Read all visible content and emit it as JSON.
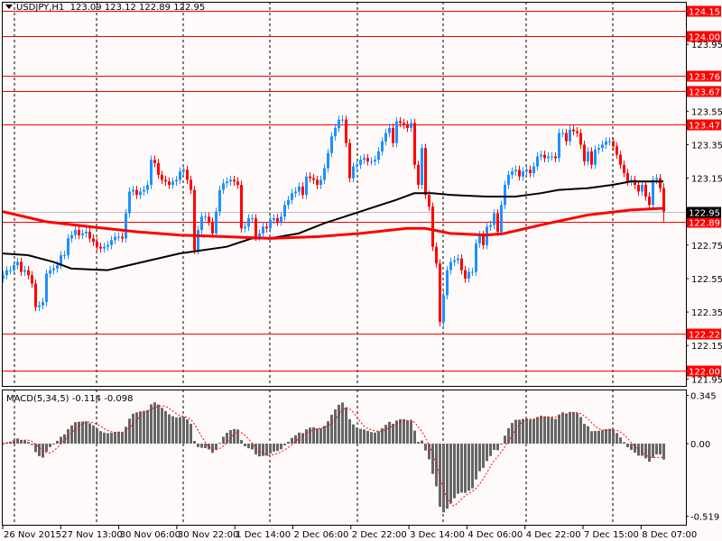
{
  "header": {
    "symbol": "USDJPY,H1",
    "open": "123.09",
    "high": "123.12",
    "low": "122.89",
    "close": "122.95"
  },
  "macd_header": {
    "label": "MACD(5,34,5)",
    "main": "-0.114",
    "signal": "-0.098"
  },
  "colors": {
    "background": "#fffafa",
    "bull": "#1e90ff",
    "bear": "#ff0000",
    "level_line": "#ff0000",
    "ma_slow": "#ff0000",
    "ma_fast": "#000000",
    "histogram": "#666666",
    "signal": "#ff0000",
    "bid_line": "#c0c0c0"
  },
  "chart_data": [
    {
      "type": "candlestick",
      "title": "USDJPY,H1",
      "ylim": [
        121.93,
        124.2
      ],
      "y_ticks": [
        "123.95",
        "123.55",
        "123.35",
        "123.15",
        "122.75",
        "122.55",
        "122.35",
        "122.15",
        "121.95"
      ],
      "x_tick_labels": [
        "26 Nov 2015",
        "27 Nov 13:00",
        "30 Nov 06:00",
        "30 Nov 22:00",
        "1 Dec 14:00",
        "2 Dec 06:00",
        "2 Dec 22:00",
        "3 Dec 14:00",
        "4 Dec 06:00",
        "4 Dec 22:00",
        "7 Dec 15:00",
        "8 Dec 07:00"
      ],
      "levels": [
        "124.15",
        "124.00",
        "123.76",
        "123.67",
        "123.47",
        "122.22",
        "122.00"
      ],
      "current_price": "122.95",
      "ask_line": "122.89",
      "last_bar": {
        "open": 123.09,
        "high": 123.12,
        "low": 122.89,
        "close": 122.95
      },
      "closes": [
        122.57,
        122.6,
        122.6,
        122.63,
        122.65,
        122.59,
        122.6,
        122.57,
        122.52,
        122.38,
        122.39,
        122.41,
        122.58,
        122.6,
        122.61,
        122.63,
        122.69,
        122.69,
        122.79,
        122.81,
        122.84,
        122.81,
        122.82,
        122.83,
        122.79,
        122.77,
        122.74,
        122.73,
        122.74,
        122.75,
        122.78,
        122.8,
        122.8,
        122.79,
        122.94,
        123.07,
        123.08,
        123.05,
        123.07,
        123.08,
        123.11,
        123.26,
        123.24,
        123.17,
        123.14,
        123.13,
        123.11,
        123.13,
        123.14,
        123.19,
        123.2,
        123.14,
        123.08,
        122.72,
        122.84,
        122.92,
        122.92,
        122.89,
        122.82,
        122.95,
        123.08,
        123.12,
        123.13,
        123.14,
        123.13,
        123.11,
        122.85,
        122.86,
        122.91,
        122.91,
        122.8,
        122.82,
        122.86,
        122.85,
        122.9,
        122.91,
        122.89,
        122.92,
        122.99,
        123.02,
        123.06,
        123.07,
        123.1,
        123.05,
        123.16,
        123.15,
        123.14,
        123.11,
        123.14,
        123.21,
        123.3,
        123.4,
        123.45,
        123.5,
        123.5,
        123.36,
        123.15,
        123.22,
        123.23,
        123.26,
        123.27,
        123.25,
        123.25,
        123.26,
        123.31,
        123.37,
        123.42,
        123.45,
        123.36,
        123.49,
        123.48,
        123.47,
        123.45,
        123.48,
        123.23,
        123.11,
        123.33,
        123.05,
        122.98,
        122.74,
        122.64,
        122.29,
        122.45,
        122.6,
        122.65,
        122.66,
        122.67,
        122.6,
        122.55,
        122.59,
        122.59,
        122.76,
        122.81,
        122.75,
        122.86,
        122.87,
        122.94,
        122.83,
        122.99,
        123.11,
        123.17,
        123.19,
        123.2,
        123.16,
        123.19,
        123.2,
        123.18,
        123.22,
        123.28,
        123.29,
        123.27,
        123.28,
        123.28,
        123.27,
        123.42,
        123.42,
        123.37,
        123.44,
        123.43,
        123.42,
        123.35,
        123.25,
        123.31,
        123.23,
        123.32,
        123.33,
        123.35,
        123.37,
        123.37,
        123.34,
        123.29,
        123.23,
        123.18,
        123.13,
        123.14,
        123.11,
        123.07,
        123.11,
        123.04,
        122.99,
        123.14,
        123.15,
        123.09,
        122.95
      ],
      "ma_red": [
        [
          0,
          122.95
        ],
        [
          12,
          122.89
        ],
        [
          24,
          122.86
        ],
        [
          37,
          122.83
        ],
        [
          49,
          122.81
        ],
        [
          62,
          122.8
        ],
        [
          74,
          122.79
        ],
        [
          87,
          122.8
        ],
        [
          99,
          122.82
        ],
        [
          112,
          122.85
        ],
        [
          117,
          122.85
        ],
        [
          124,
          122.82
        ],
        [
          134,
          122.81
        ],
        [
          139,
          122.82
        ],
        [
          149,
          122.87
        ],
        [
          162,
          122.93
        ],
        [
          174,
          122.96
        ],
        [
          183,
          122.97
        ]
      ],
      "ma_black": [
        [
          0,
          122.7
        ],
        [
          7,
          122.69
        ],
        [
          14,
          122.65
        ],
        [
          19,
          122.61
        ],
        [
          29,
          122.6
        ],
        [
          37,
          122.64
        ],
        [
          49,
          122.7
        ],
        [
          62,
          122.74
        ],
        [
          69,
          122.79
        ],
        [
          74,
          122.79
        ],
        [
          82,
          122.82
        ],
        [
          89,
          122.88
        ],
        [
          99,
          122.95
        ],
        [
          109,
          123.02
        ],
        [
          114,
          123.06
        ],
        [
          119,
          123.06
        ],
        [
          124,
          123.05
        ],
        [
          134,
          123.04
        ],
        [
          142,
          123.04
        ],
        [
          149,
          123.06
        ],
        [
          154,
          123.08
        ],
        [
          162,
          123.09
        ],
        [
          169,
          123.11
        ],
        [
          174,
          123.13
        ],
        [
          183,
          123.13
        ]
      ]
    },
    {
      "type": "bar",
      "title": "MACD(5,34,5)",
      "ylim": [
        -0.519,
        0.345
      ],
      "y_ticks": [
        "0.345",
        "0.00",
        "-0.519"
      ],
      "main": -0.114,
      "signal": -0.098
    }
  ]
}
